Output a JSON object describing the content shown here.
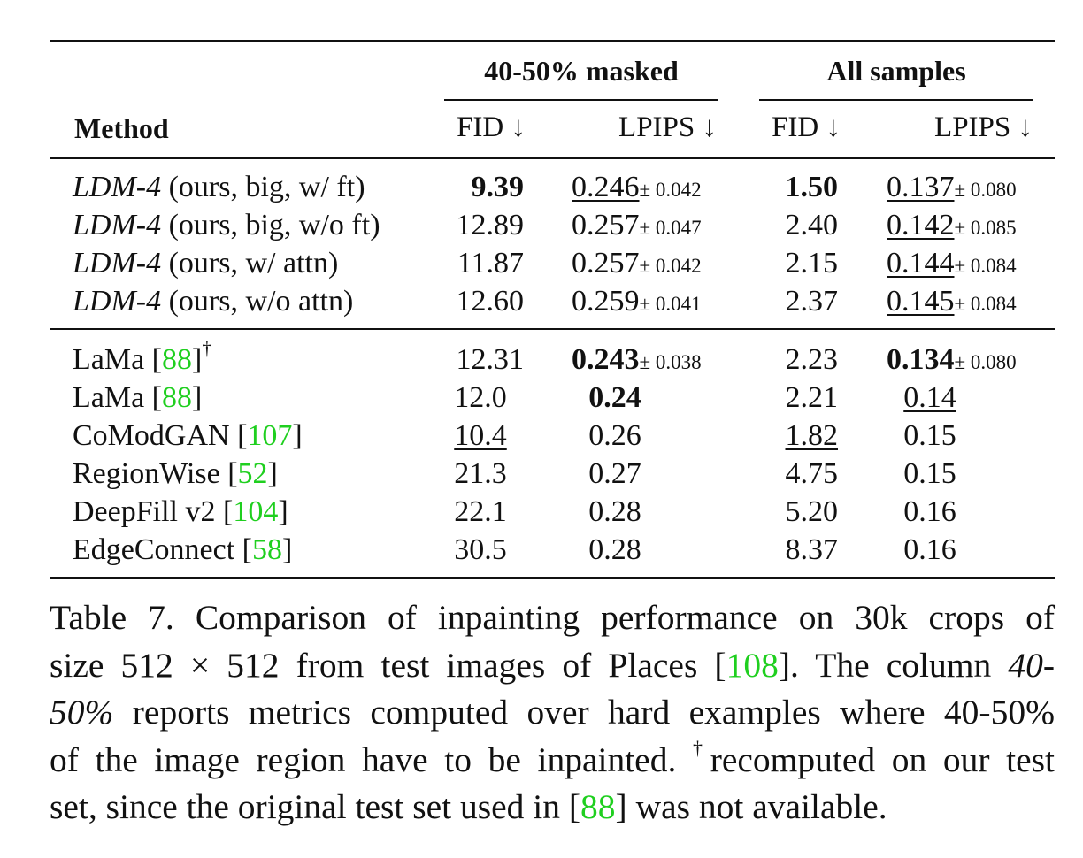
{
  "table": {
    "header": {
      "method": "Method",
      "group1": "40-50% masked",
      "group2": "All samples",
      "fid": "FID ↓",
      "lpips": "LPIPS ↓"
    },
    "rows_ldm": [
      {
        "method_em": "LDM-4",
        "method_rest": " (ours, big, w/ ft)",
        "fid1": "9.39",
        "lpips1": "0.246",
        "lpips1_pm": "± 0.042",
        "fid2": "1.50",
        "lpips2": "0.137",
        "lpips2_pm": "± 0.080"
      },
      {
        "method_em": "LDM-4",
        "method_rest": " (ours, big, w/o ft)",
        "fid1": "12.89",
        "lpips1": "0.257",
        "lpips1_pm": "± 0.047",
        "fid2": "2.40",
        "lpips2": "0.142",
        "lpips2_pm": "± 0.085"
      },
      {
        "method_em": "LDM-4",
        "method_rest": " (ours, w/ attn)",
        "fid1": "11.87",
        "lpips1": "0.257",
        "lpips1_pm": "± 0.042",
        "fid2": "2.15",
        "lpips2": "0.144",
        "lpips2_pm": "± 0.084"
      },
      {
        "method_em": "LDM-4",
        "method_rest": " (ours, w/o attn)",
        "fid1": "12.60",
        "lpips1": "0.259",
        "lpips1_pm": "± 0.041",
        "fid2": "2.37",
        "lpips2": "0.145",
        "lpips2_pm": "± 0.084"
      }
    ],
    "rows_other": [
      {
        "name": "LaMa [",
        "ref": "88",
        "close": "]",
        "dagger": "†",
        "fid1": "12.31",
        "lpips1": "0.243",
        "lpips1_pm": "± 0.038",
        "fid2": "2.23",
        "lpips2": "0.134",
        "lpips2_pm": "± 0.080"
      },
      {
        "name": "LaMa [",
        "ref": "88",
        "close": "]",
        "fid1": "12.0",
        "lpips1": "0.24",
        "fid2": "2.21",
        "lpips2": "0.14"
      },
      {
        "name": "CoModGAN [",
        "ref": "107",
        "close": "]",
        "fid1": "10.4",
        "lpips1": "0.26",
        "fid2": "1.82",
        "lpips2": "0.15"
      },
      {
        "name": "RegionWise [",
        "ref": "52",
        "close": "]",
        "fid1": "21.3",
        "lpips1": "0.27",
        "fid2": "4.75",
        "lpips2": "0.15"
      },
      {
        "name": "DeepFill v2 [",
        "ref": "104",
        "close": "]",
        "fid1": "22.1",
        "lpips1": "0.28",
        "fid2": "5.20",
        "lpips2": "0.16"
      },
      {
        "name": "EdgeConnect [",
        "ref": "58",
        "close": "]",
        "fid1": "30.5",
        "lpips1": "0.28",
        "fid2": "8.37",
        "lpips2": "0.16"
      }
    ]
  },
  "caption": {
    "l1": "Table 7.  Comparison of inpainting performance on 30k crops of",
    "l2a": "size 512 × 512 from test images of Places [",
    "l2ref": "108",
    "l2b": "]. The column ",
    "l2em": "40-",
    "l3em": "50%",
    "l3b": " reports metrics computed over hard examples where 40-50%",
    "l4a": "of the image region have to be inpainted. ",
    "l4dag": "†",
    "l4b": "recomputed on our test",
    "l5a": "set, since the original test set used in [",
    "l5ref": "88",
    "l5b": "] was not available."
  }
}
